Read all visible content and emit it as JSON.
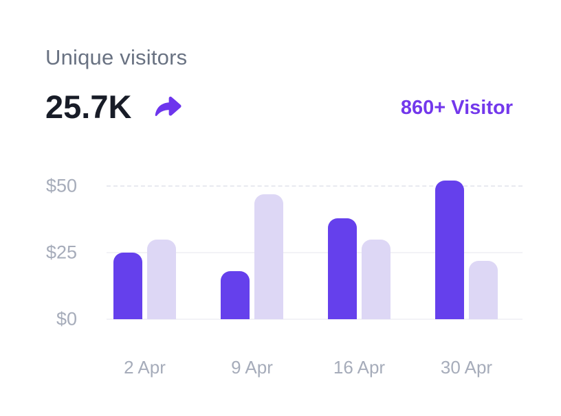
{
  "header": {
    "title": "Unique visitors",
    "value": "25.7K",
    "badge_label": "860+ Visitor"
  },
  "icons": {
    "share_arrow": "share-arrow-icon"
  },
  "colors": {
    "accent_purple": "#6D35ED",
    "badge_text": "#7338EC",
    "title_text": "#697282",
    "value_text": "#181C27",
    "axis_text": "#A6ACBA",
    "gridline_solid": "#F2F2F6",
    "gridline_dashed": "#E8E9EF"
  },
  "chart_data": {
    "type": "bar",
    "title": "Unique visitors",
    "categories": [
      "2 Apr",
      "9 Apr",
      "16 Apr",
      "30 Apr"
    ],
    "series": [
      {
        "name": "visitors-primary",
        "color": "#6540EC",
        "values": [
          25,
          18,
          38,
          52
        ]
      },
      {
        "name": "visitors-secondary",
        "color": "#DDD7F5",
        "values": [
          30,
          47,
          30,
          22
        ]
      }
    ],
    "xlabel": "",
    "ylabel": "",
    "ylim": [
      0,
      50
    ],
    "y_ticks": [
      {
        "label": "$50",
        "value": 50,
        "dashed": true
      },
      {
        "label": "$25",
        "value": 25,
        "dashed": false
      },
      {
        "label": "$0",
        "value": 0,
        "dashed": false
      }
    ],
    "grid": true,
    "legend": false
  }
}
